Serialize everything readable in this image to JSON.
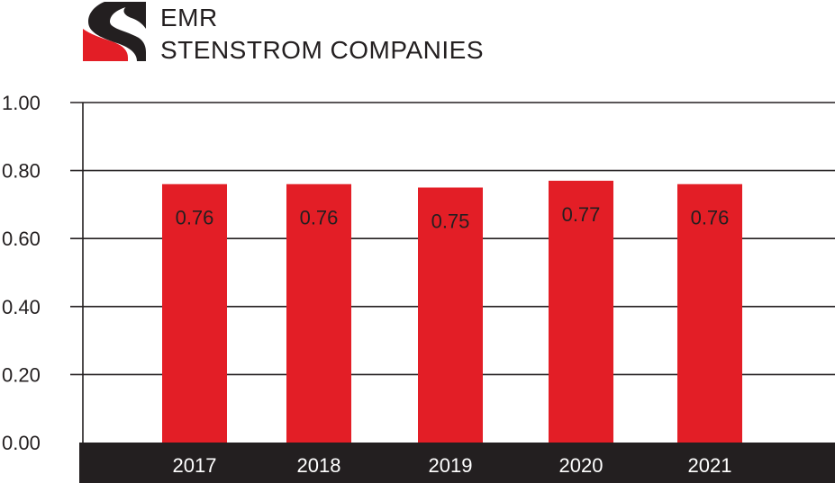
{
  "brand": {
    "line1": "EMR",
    "line2": "STENSTROM COMPANIES",
    "logo_icon": "emr-s-logo-icon",
    "logo_colors": {
      "dark": "#231f20",
      "red": "#e31e26"
    }
  },
  "colors": {
    "bar": "#e31e26",
    "axis_band": "#231f20",
    "grid": "#231f20",
    "text": "#231f20",
    "x_label_text": "#ffffff"
  },
  "chart_data": {
    "type": "bar",
    "categories": [
      "2017",
      "2018",
      "2019",
      "2020",
      "2021"
    ],
    "values": [
      0.76,
      0.76,
      0.75,
      0.77,
      0.76
    ],
    "data_labels": [
      "0.76",
      "0.76",
      "0.75",
      "0.77",
      "0.76"
    ],
    "y_ticks": [
      "1.00",
      "0.80",
      "0.60",
      "0.40",
      "0.20",
      "0.00"
    ],
    "ylim": [
      0,
      1.0
    ],
    "title": "",
    "xlabel": "",
    "ylabel": "",
    "grid": true,
    "legend": "none"
  }
}
